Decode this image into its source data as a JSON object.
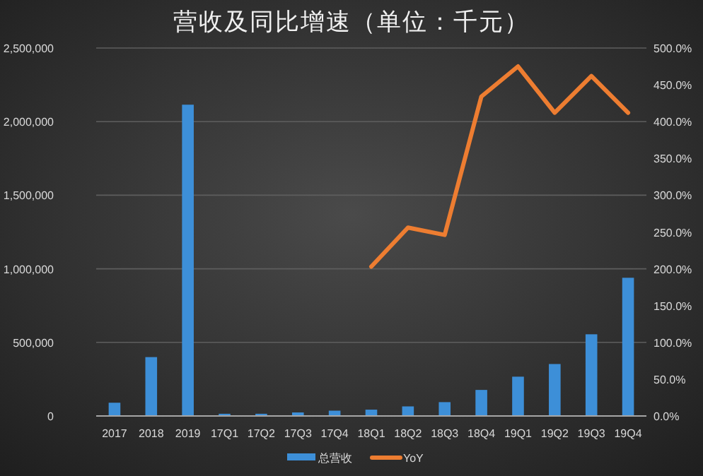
{
  "chart_data": {
    "type": "bar",
    "title": "营收及同比增速（单位：千元）",
    "categories": [
      "2017",
      "2018",
      "2019",
      "17Q1",
      "17Q2",
      "17Q3",
      "17Q4",
      "18Q1",
      "18Q2",
      "18Q3",
      "18Q4",
      "19Q1",
      "19Q2",
      "19Q3",
      "19Q4"
    ],
    "series": [
      {
        "name": "总营收",
        "color": "#3d8fd8",
        "values": [
          90000,
          400000,
          2115000,
          15000,
          15000,
          24000,
          36000,
          43000,
          65000,
          94000,
          177000,
          267000,
          353000,
          555000,
          939000
        ]
      },
      {
        "name": "YoY",
        "type": "line",
        "axis": "y2",
        "color": "#ed7d31",
        "values": [
          null,
          null,
          null,
          null,
          null,
          null,
          null,
          203,
          256,
          246,
          434,
          475,
          412,
          462,
          412
        ]
      }
    ],
    "ylim": [
      0,
      2500000
    ],
    "yticks": [
      {
        "value": 0,
        "label": "0"
      },
      {
        "value": 500000,
        "label": "500,000"
      },
      {
        "value": 1000000,
        "label": "1,000,000"
      },
      {
        "value": 1500000,
        "label": "1,500,000"
      },
      {
        "value": 2000000,
        "label": "2,000,000"
      },
      {
        "value": 2500000,
        "label": "2,500,000"
      }
    ],
    "y2lim": [
      0,
      500
    ],
    "y2ticks": [
      {
        "value": 0,
        "label": "0.0%"
      },
      {
        "value": 50,
        "label": "50.0%"
      },
      {
        "value": 100,
        "label": "100.0%"
      },
      {
        "value": 150,
        "label": "150.0%"
      },
      {
        "value": 200,
        "label": "200.0%"
      },
      {
        "value": 250,
        "label": "250.0%"
      },
      {
        "value": 300,
        "label": "300.0%"
      },
      {
        "value": 350,
        "label": "350.0%"
      },
      {
        "value": 400,
        "label": "400.0%"
      },
      {
        "value": 450,
        "label": "450.0%"
      },
      {
        "value": 500,
        "label": "500.0%"
      }
    ],
    "grid": "y",
    "legend": "bottom"
  }
}
